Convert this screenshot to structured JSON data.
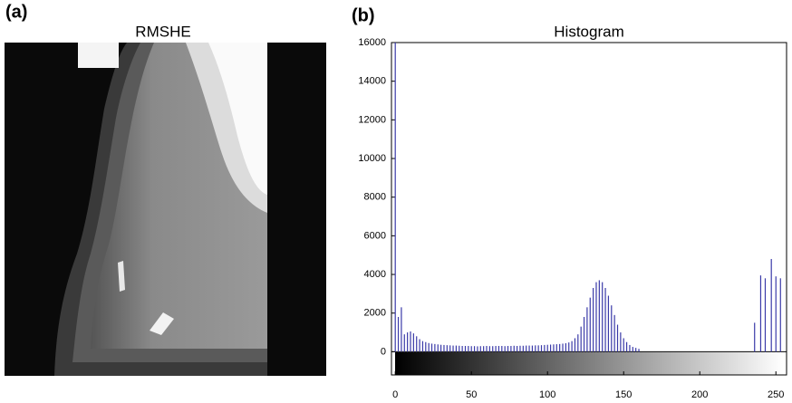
{
  "image_panel": {
    "label": "(a)",
    "title": "RMSHE"
  },
  "chart_data": {
    "type": "histogram-stem",
    "panel_label": "(b)",
    "title": "Histogram",
    "color": "#3a3aa8",
    "x": [
      0,
      2,
      4,
      6,
      8,
      10,
      12,
      14,
      16,
      18,
      20,
      22,
      24,
      26,
      28,
      30,
      32,
      34,
      36,
      38,
      40,
      42,
      44,
      46,
      48,
      50,
      52,
      54,
      56,
      58,
      60,
      62,
      64,
      66,
      68,
      70,
      72,
      74,
      76,
      78,
      80,
      82,
      84,
      86,
      88,
      90,
      92,
      94,
      96,
      98,
      100,
      102,
      104,
      106,
      108,
      110,
      112,
      114,
      116,
      118,
      120,
      122,
      124,
      126,
      128,
      130,
      132,
      134,
      136,
      138,
      140,
      142,
      144,
      146,
      148,
      150,
      152,
      154,
      156,
      158,
      160,
      236,
      240,
      243,
      247,
      250,
      253
    ],
    "values": [
      16000,
      1800,
      2300,
      900,
      1000,
      1050,
      950,
      800,
      650,
      550,
      500,
      450,
      420,
      400,
      380,
      360,
      350,
      340,
      330,
      320,
      320,
      310,
      300,
      300,
      300,
      290,
      290,
      280,
      290,
      290,
      300,
      290,
      290,
      300,
      300,
      300,
      290,
      300,
      300,
      310,
      300,
      310,
      310,
      320,
      320,
      320,
      330,
      330,
      340,
      350,
      360,
      370,
      380,
      390,
      400,
      420,
      440,
      480,
      550,
      700,
      900,
      1300,
      1800,
      2300,
      2800,
      3300,
      3600,
      3700,
      3600,
      3300,
      2900,
      2400,
      1900,
      1400,
      1000,
      700,
      500,
      350,
      250,
      200,
      150,
      1500,
      3950,
      3800,
      4800,
      3900,
      3800
    ],
    "xlim": [
      -2.5,
      257
    ],
    "ylim": [
      -1200,
      16000
    ],
    "xticks": [
      0,
      50,
      100,
      150,
      200,
      250
    ],
    "yticks": [
      0,
      2000,
      4000,
      6000,
      8000,
      10000,
      12000,
      14000,
      16000
    ]
  }
}
